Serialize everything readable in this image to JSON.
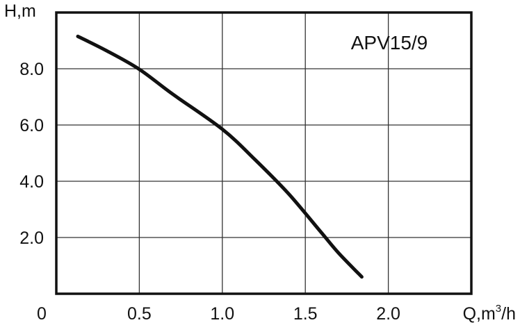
{
  "chart_data": {
    "type": "line",
    "xlabel": "Q,m",
    "xlabel_sup": "3",
    "xlabel_tail": "/h",
    "ylabel": "H,m",
    "xlim": [
      0,
      2.5
    ],
    "ylim": [
      0,
      10
    ],
    "x_ticks": [
      {
        "value": 0,
        "label": "0"
      },
      {
        "value": 0.5,
        "label": "0.5"
      },
      {
        "value": 1.0,
        "label": "1.0"
      },
      {
        "value": 1.5,
        "label": "1.5"
      },
      {
        "value": 2.0,
        "label": "2.0"
      }
    ],
    "y_ticks": [
      {
        "value": 2,
        "label": "2.0"
      },
      {
        "value": 4,
        "label": "4.0"
      },
      {
        "value": 6,
        "label": "6.0"
      },
      {
        "value": 8,
        "label": "8.0"
      }
    ],
    "grid": true,
    "series": [
      {
        "name": "APV15/9",
        "x": [
          0.13,
          0.3,
          0.5,
          0.7,
          1.0,
          1.2,
          1.4,
          1.6,
          1.7,
          1.84
        ],
        "y": [
          9.15,
          8.65,
          7.98,
          7.1,
          5.85,
          4.75,
          3.55,
          2.15,
          1.45,
          0.6
        ]
      }
    ],
    "colors": {
      "line": "#111111",
      "grid": "#333333",
      "frame": "#111111"
    }
  }
}
